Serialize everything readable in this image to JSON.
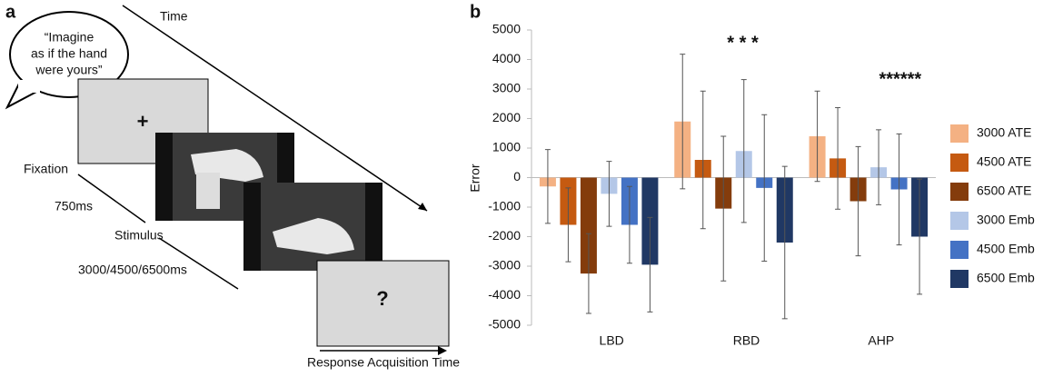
{
  "panel_a": {
    "label": "a",
    "time": "Time",
    "speech": [
      "“Imagine",
      "as if the hand",
      "were yours”"
    ],
    "fixation_symbol": "+",
    "fixation": "Fixation",
    "fixation_duration": "750ms",
    "stimulus": "Stimulus",
    "stimulus_duration": "3000/4500/6500ms",
    "response_symbol": "?",
    "response": "Response Acquisition Time"
  },
  "chart_data": {
    "type": "bar",
    "panel_label": "b",
    "y_label": "Error",
    "categories": [
      "LBD",
      "RBD",
      "AHP"
    ],
    "series": [
      {
        "name": "3000 ATE",
        "color": "#f4b183",
        "values": [
          -300,
          1900,
          1400
        ],
        "errors": [
          1250,
          2280,
          1530
        ]
      },
      {
        "name": "4500 ATE",
        "color": "#c55a11",
        "values": [
          -1600,
          600,
          650
        ],
        "errors": [
          1250,
          2330,
          1720
        ]
      },
      {
        "name": "6500 ATE",
        "color": "#843c0c",
        "values": [
          -3250,
          -1050,
          -800
        ],
        "errors": [
          1350,
          2450,
          1850
        ]
      },
      {
        "name": "3000 Emb",
        "color": "#b4c7e7",
        "values": [
          -550,
          900,
          350
        ],
        "errors": [
          1100,
          2420,
          1270
        ]
      },
      {
        "name": "4500 Emb",
        "color": "#4472c4",
        "values": [
          -1600,
          -350,
          -400
        ],
        "errors": [
          1300,
          2480,
          1880
        ]
      },
      {
        "name": "6500 Emb",
        "color": "#203864",
        "values": [
          -2950,
          -2200,
          -2000
        ],
        "errors": [
          1600,
          2580,
          1950
        ]
      }
    ],
    "annotations": [
      "*  *  *",
      "******"
    ],
    "ylim": [
      -5000,
      5000
    ],
    "yticks": [
      -5000,
      -4000,
      -3000,
      -2000,
      -1000,
      0,
      1000,
      2000,
      3000,
      4000,
      5000
    ],
    "grid": false
  }
}
